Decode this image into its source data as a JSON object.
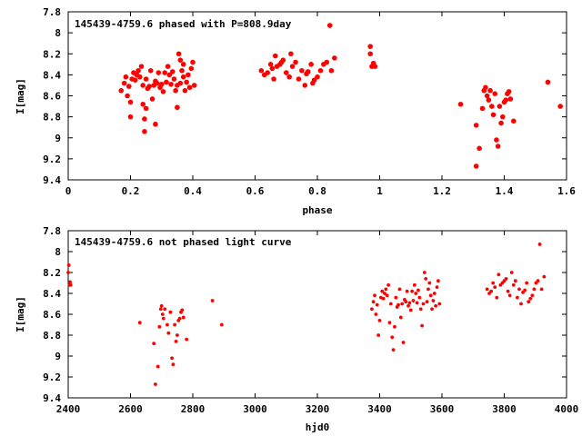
{
  "chart_data": [
    {
      "type": "scatter",
      "title": "145439-4759.6 phased with P=808.9day",
      "xlabel": "phase",
      "ylabel": "I[mag]",
      "xlim": [
        0,
        1.6
      ],
      "ylim": [
        9.4,
        7.8
      ],
      "y_inverted": true,
      "grid": false,
      "marker_color": "#ff0000",
      "marker": "filled-circle",
      "xticks": [
        0,
        0.2,
        0.4,
        0.6,
        0.8,
        1,
        1.2,
        1.4,
        1.6
      ],
      "xtick_labels": [
        "0",
        "0.2",
        "0.4",
        "0.6",
        "0.8",
        "1",
        "1.2",
        "1.4",
        "1.6"
      ],
      "yticks": [
        7.8,
        8,
        8.2,
        8.4,
        8.6,
        8.8,
        9,
        9.2,
        9.4
      ],
      "ytick_labels": [
        "7.8",
        "8",
        "8.2",
        "8.4",
        "8.6",
        "8.8",
        "9",
        "9.2",
        "9.4"
      ],
      "series": [
        {
          "points": [
            [
              0.17,
              8.55
            ],
            [
              0.18,
              8.48
            ],
            [
              0.185,
              8.42
            ],
            [
              0.19,
              8.6
            ],
            [
              0.195,
              8.51
            ],
            [
              0.2,
              8.8
            ],
            [
              0.2,
              8.66
            ],
            [
              0.205,
              8.44
            ],
            [
              0.21,
              8.38
            ],
            [
              0.215,
              8.45
            ],
            [
              0.22,
              8.4
            ],
            [
              0.225,
              8.36
            ],
            [
              0.23,
              8.42
            ],
            [
              0.235,
              8.32
            ],
            [
              0.24,
              8.68
            ],
            [
              0.24,
              8.5
            ],
            [
              0.245,
              8.82
            ],
            [
              0.245,
              8.94
            ],
            [
              0.25,
              8.72
            ],
            [
              0.25,
              8.44
            ],
            [
              0.255,
              8.53
            ],
            [
              0.26,
              8.51
            ],
            [
              0.265,
              8.36
            ],
            [
              0.27,
              8.63
            ],
            [
              0.275,
              8.5
            ],
            [
              0.28,
              8.87
            ],
            [
              0.28,
              8.46
            ],
            [
              0.285,
              8.48
            ],
            [
              0.29,
              8.38
            ],
            [
              0.295,
              8.52
            ],
            [
              0.3,
              8.49
            ],
            [
              0.305,
              8.56
            ],
            [
              0.31,
              8.38
            ],
            [
              0.315,
              8.47
            ],
            [
              0.32,
              8.32
            ],
            [
              0.325,
              8.4
            ],
            [
              0.33,
              8.49
            ],
            [
              0.335,
              8.37
            ],
            [
              0.34,
              8.44
            ],
            [
              0.345,
              8.55
            ],
            [
              0.35,
              8.71
            ],
            [
              0.35,
              8.5
            ],
            [
              0.355,
              8.2
            ],
            [
              0.36,
              8.26
            ],
            [
              0.36,
              8.48
            ],
            [
              0.365,
              8.36
            ],
            [
              0.37,
              8.3
            ],
            [
              0.37,
              8.42
            ],
            [
              0.375,
              8.55
            ],
            [
              0.38,
              8.47
            ],
            [
              0.385,
              8.4
            ],
            [
              0.39,
              8.52
            ],
            [
              0.395,
              8.34
            ],
            [
              0.4,
              8.28
            ],
            [
              0.405,
              8.5
            ],
            [
              0.62,
              8.36
            ],
            [
              0.63,
              8.4
            ],
            [
              0.64,
              8.38
            ],
            [
              0.65,
              8.3
            ],
            [
              0.655,
              8.34
            ],
            [
              0.66,
              8.44
            ],
            [
              0.665,
              8.22
            ],
            [
              0.67,
              8.32
            ],
            [
              0.68,
              8.3
            ],
            [
              0.685,
              8.28
            ],
            [
              0.69,
              8.26
            ],
            [
              0.7,
              8.38
            ],
            [
              0.71,
              8.42
            ],
            [
              0.715,
              8.2
            ],
            [
              0.72,
              8.32
            ],
            [
              0.73,
              8.28
            ],
            [
              0.74,
              8.44
            ],
            [
              0.75,
              8.36
            ],
            [
              0.76,
              8.5
            ],
            [
              0.765,
              8.39
            ],
            [
              0.77,
              8.37
            ],
            [
              0.78,
              8.3
            ],
            [
              0.785,
              8.48
            ],
            [
              0.79,
              8.45
            ],
            [
              0.8,
              8.42
            ],
            [
              0.81,
              8.36
            ],
            [
              0.82,
              8.3
            ],
            [
              0.83,
              8.28
            ],
            [
              0.84,
              7.93
            ],
            [
              0.845,
              8.36
            ],
            [
              0.855,
              8.24
            ],
            [
              0.97,
              8.13
            ],
            [
              0.97,
              8.2
            ],
            [
              0.975,
              8.32
            ],
            [
              0.98,
              8.29
            ],
            [
              0.985,
              8.32
            ],
            [
              1.26,
              8.68
            ],
            [
              1.31,
              8.88
            ],
            [
              1.31,
              9.27
            ],
            [
              1.32,
              9.1
            ],
            [
              1.33,
              8.72
            ],
            [
              1.335,
              8.55
            ],
            [
              1.34,
              8.52
            ],
            [
              1.345,
              8.6
            ],
            [
              1.35,
              8.64
            ],
            [
              1.355,
              8.55
            ],
            [
              1.36,
              8.7
            ],
            [
              1.365,
              8.78
            ],
            [
              1.37,
              8.58
            ],
            [
              1.375,
              9.02
            ],
            [
              1.38,
              9.08
            ],
            [
              1.385,
              8.7
            ],
            [
              1.39,
              8.86
            ],
            [
              1.395,
              8.8
            ],
            [
              1.4,
              8.66
            ],
            [
              1.405,
              8.64
            ],
            [
              1.41,
              8.58
            ],
            [
              1.415,
              8.56
            ],
            [
              1.42,
              8.63
            ],
            [
              1.43,
              8.84
            ],
            [
              1.54,
              8.47
            ],
            [
              1.58,
              8.7
            ]
          ]
        }
      ]
    },
    {
      "type": "scatter",
      "title": "145439-4759.6 not phased light curve",
      "xlabel": "hjd0",
      "ylabel": "I[mag]",
      "xlim": [
        2400,
        4000
      ],
      "ylim": [
        9.4,
        7.8
      ],
      "y_inverted": true,
      "grid": false,
      "marker_color": "#ff0000",
      "marker": "filled-circle",
      "xticks": [
        2400,
        2600,
        2800,
        3000,
        3200,
        3400,
        3600,
        3800,
        4000
      ],
      "xtick_labels": [
        "2400",
        "2600",
        "2800",
        "3000",
        "3200",
        "3400",
        "3600",
        "3800",
        "4000"
      ],
      "yticks": [
        7.8,
        8,
        8.2,
        8.4,
        8.6,
        8.8,
        9,
        9.2,
        9.4
      ],
      "ytick_labels": [
        "7.8",
        "8",
        "8.2",
        "8.4",
        "8.6",
        "8.8",
        "9",
        "9.2",
        "9.4"
      ],
      "series": [
        {
          "points": [
            [
              2400,
              8.2
            ],
            [
              2402,
              8.13
            ],
            [
              2404,
              8.32
            ],
            [
              2406,
              8.29
            ],
            [
              2408,
              8.32
            ],
            [
              2630,
              8.68
            ],
            [
              2675,
              8.88
            ],
            [
              2680,
              9.27
            ],
            [
              2688,
              9.1
            ],
            [
              2693,
              8.72
            ],
            [
              2697,
              8.55
            ],
            [
              2700,
              8.52
            ],
            [
              2703,
              8.6
            ],
            [
              2706,
              8.64
            ],
            [
              2710,
              8.55
            ],
            [
              2718,
              8.7
            ],
            [
              2722,
              8.78
            ],
            [
              2728,
              8.58
            ],
            [
              2733,
              9.02
            ],
            [
              2737,
              9.08
            ],
            [
              2742,
              8.7
            ],
            [
              2746,
              8.86
            ],
            [
              2750,
              8.8
            ],
            [
              2754,
              8.66
            ],
            [
              2758,
              8.64
            ],
            [
              2762,
              8.58
            ],
            [
              2766,
              8.56
            ],
            [
              2770,
              8.63
            ],
            [
              2780,
              8.84
            ],
            [
              2863,
              8.47
            ],
            [
              2893,
              8.7
            ],
            [
              3375,
              8.55
            ],
            [
              3380,
              8.48
            ],
            [
              3384,
              8.42
            ],
            [
              3388,
              8.6
            ],
            [
              3392,
              8.51
            ],
            [
              3396,
              8.8
            ],
            [
              3400,
              8.66
            ],
            [
              3404,
              8.44
            ],
            [
              3408,
              8.38
            ],
            [
              3412,
              8.45
            ],
            [
              3416,
              8.4
            ],
            [
              3420,
              8.36
            ],
            [
              3424,
              8.42
            ],
            [
              3428,
              8.32
            ],
            [
              3432,
              8.68
            ],
            [
              3436,
              8.5
            ],
            [
              3440,
              8.82
            ],
            [
              3444,
              8.94
            ],
            [
              3448,
              8.72
            ],
            [
              3452,
              8.44
            ],
            [
              3456,
              8.53
            ],
            [
              3460,
              8.51
            ],
            [
              3464,
              8.36
            ],
            [
              3468,
              8.63
            ],
            [
              3472,
              8.5
            ],
            [
              3476,
              8.87
            ],
            [
              3480,
              8.46
            ],
            [
              3484,
              8.48
            ],
            [
              3488,
              8.38
            ],
            [
              3492,
              8.52
            ],
            [
              3496,
              8.49
            ],
            [
              3500,
              8.56
            ],
            [
              3504,
              8.38
            ],
            [
              3508,
              8.47
            ],
            [
              3512,
              8.32
            ],
            [
              3516,
              8.4
            ],
            [
              3520,
              8.49
            ],
            [
              3524,
              8.37
            ],
            [
              3528,
              8.44
            ],
            [
              3532,
              8.55
            ],
            [
              3536,
              8.71
            ],
            [
              3540,
              8.5
            ],
            [
              3544,
              8.2
            ],
            [
              3548,
              8.26
            ],
            [
              3552,
              8.48
            ],
            [
              3556,
              8.36
            ],
            [
              3560,
              8.3
            ],
            [
              3564,
              8.42
            ],
            [
              3568,
              8.55
            ],
            [
              3572,
              8.47
            ],
            [
              3576,
              8.4
            ],
            [
              3580,
              8.52
            ],
            [
              3584,
              8.34
            ],
            [
              3588,
              8.28
            ],
            [
              3592,
              8.5
            ],
            [
              3745,
              8.36
            ],
            [
              3752,
              8.4
            ],
            [
              3758,
              8.38
            ],
            [
              3764,
              8.3
            ],
            [
              3770,
              8.34
            ],
            [
              3776,
              8.44
            ],
            [
              3782,
              8.22
            ],
            [
              3788,
              8.32
            ],
            [
              3794,
              8.3
            ],
            [
              3800,
              8.28
            ],
            [
              3806,
              8.26
            ],
            [
              3812,
              8.38
            ],
            [
              3818,
              8.42
            ],
            [
              3824,
              8.2
            ],
            [
              3830,
              8.32
            ],
            [
              3836,
              8.28
            ],
            [
              3842,
              8.44
            ],
            [
              3848,
              8.36
            ],
            [
              3854,
              8.5
            ],
            [
              3860,
              8.39
            ],
            [
              3866,
              8.37
            ],
            [
              3872,
              8.3
            ],
            [
              3878,
              8.48
            ],
            [
              3884,
              8.45
            ],
            [
              3890,
              8.42
            ],
            [
              3896,
              8.36
            ],
            [
              3902,
              8.3
            ],
            [
              3908,
              8.28
            ],
            [
              3914,
              7.93
            ],
            [
              3920,
              8.36
            ],
            [
              3928,
              8.24
            ]
          ]
        }
      ]
    }
  ]
}
